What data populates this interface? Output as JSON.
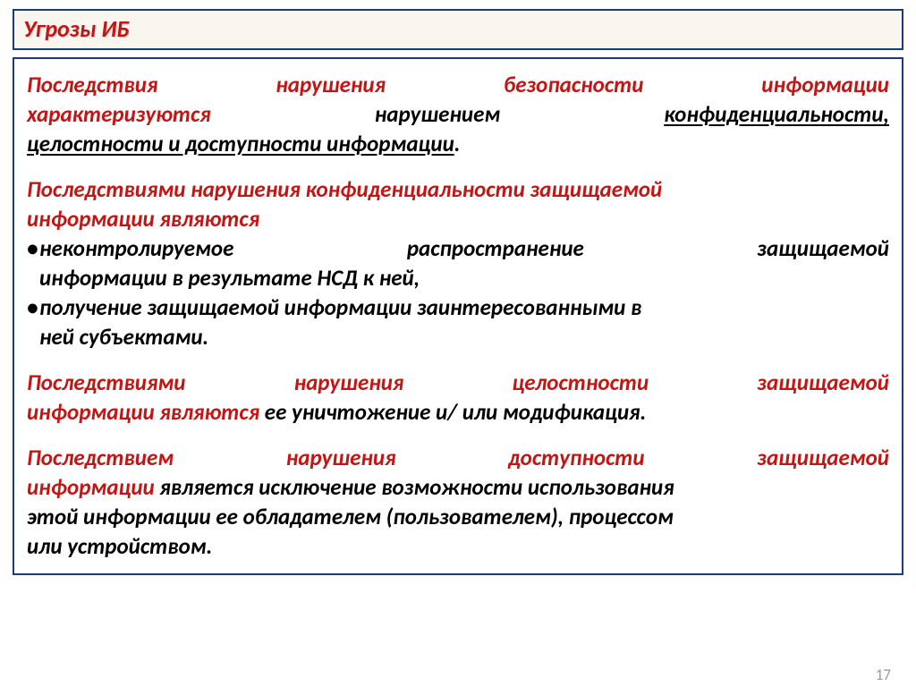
{
  "header": {
    "title": "Угрозы ИБ"
  },
  "colors": {
    "border": "#1a3a7a",
    "header_bg": "#f8f6ee",
    "red": "#c41515",
    "text": "#000000",
    "page_num": "#9a9a9a"
  },
  "typography": {
    "body_font_size_pt": 19,
    "body_weight": "bold",
    "style": "italic",
    "header_font_size_pt": 20
  },
  "p1": {
    "red1_a": "Последствия",
    "red1_b": "нарушения",
    "red1_c": "безопасности",
    "red1_d": "информации",
    "red2": "характеризуются",
    "plain1": "нарушением",
    "u1": "конфиденциальности,",
    "u2": "целостности и доступности информации",
    "tail": "."
  },
  "p2": {
    "red_line1": "Последствиями нарушения конфиденциальности защищаемой",
    "red_line2": "информации являются",
    "b1_w1": "неконтролируемое",
    "b1_w2": "распространение",
    "b1_w3": "защищаемой",
    "b1_line2": "информации в результате НСД к ней,",
    "b2_line1": "получение защищаемой информации заинтересованными в",
    "b2_line2": "ней субъектами."
  },
  "p3": {
    "red_w1": "Последствиями",
    "red_w2": "нарушения",
    "red_w3": "целостности",
    "red_w4": "защищаемой",
    "red_line2": "информации являются",
    "plain": " ее уничтожение и/ или модификация."
  },
  "p4": {
    "red_w1": "Последствием",
    "red_w2": "нарушения",
    "red_w3": "доступности",
    "red_w4": "защищаемой",
    "red_line2": "информации",
    "plain_line2": " является исключение возможности использования",
    "plain_line3": "этой информации ее обладателем (пользователем), процессом",
    "plain_line4": "или устройством."
  },
  "page_number": "17"
}
